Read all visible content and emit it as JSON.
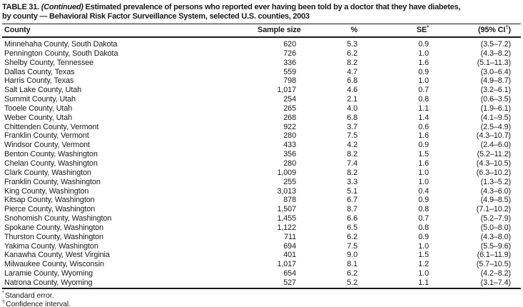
{
  "title": {
    "table_number": "TABLE 31.",
    "continued": "(Continued)",
    "line1_rest": "Estimated prevalence of persons who reported ever having been told by a doctor that they have diabetes,",
    "line2": "by county — Behavioral Risk Factor Surveillance System, selected U.S. counties, 2003"
  },
  "header": {
    "county": "County",
    "sample_size": "Sample size",
    "percent": "%",
    "se_base": "SE",
    "se_sup": "*",
    "ci_base": "(95% CI",
    "ci_sup": "†",
    "ci_close": ")"
  },
  "rows": [
    {
      "county": "Minnehaha County, South Dakota",
      "sample_size": "620",
      "percent": "5.3",
      "se": "0.9",
      "ci": "(3.5–7.2)"
    },
    {
      "county": "Pennington County, South Dakota",
      "sample_size": "726",
      "percent": "6.2",
      "se": "1.0",
      "ci": "(4.3–8.2)"
    },
    {
      "county": "Shelby County, Tennessee",
      "sample_size": "336",
      "percent": "8.2",
      "se": "1.6",
      "ci": "(5.1–11.3)"
    },
    {
      "county": "Dallas County, Texas",
      "sample_size": "559",
      "percent": "4.7",
      "se": "0.9",
      "ci": "(3.0–6.4)"
    },
    {
      "county": "Harris County, Texas",
      "sample_size": "798",
      "percent": "6.8",
      "se": "1.0",
      "ci": "(4.9–8.7)"
    },
    {
      "county": "Salt Lake County, Utah",
      "sample_size": "1,017",
      "percent": "4.6",
      "se": "0.7",
      "ci": "(3.2–6.1)"
    },
    {
      "county": "Summit County, Utah",
      "sample_size": "254",
      "percent": "2.1",
      "se": "0.8",
      "ci": "(0.6–3.5)"
    },
    {
      "county": "Tooele County, Utah",
      "sample_size": "265",
      "percent": "4.0",
      "se": "1.1",
      "ci": "(1.9–6.1)"
    },
    {
      "county": "Weber County, Utah",
      "sample_size": "268",
      "percent": "6.8",
      "se": "1.4",
      "ci": "(4.1–9.5)"
    },
    {
      "county": "Chittenden County, Vermont",
      "sample_size": "922",
      "percent": "3.7",
      "se": "0.6",
      "ci": "(2.5–4.9)"
    },
    {
      "county": "Franklin County, Vermont",
      "sample_size": "280",
      "percent": "7.5",
      "se": "1.6",
      "ci": "(4.3–10.7)"
    },
    {
      "county": "Windsor County, Vermont",
      "sample_size": "433",
      "percent": "4.2",
      "se": "0.9",
      "ci": "(2.4–6.0)"
    },
    {
      "county": "Benton County, Washington",
      "sample_size": "356",
      "percent": "8.2",
      "se": "1.5",
      "ci": "(5.2–11.2)"
    },
    {
      "county": "Chelan County, Washington",
      "sample_size": "280",
      "percent": "7.4",
      "se": "1.6",
      "ci": "(4.3–10.5)"
    },
    {
      "county": "Clark County, Washington",
      "sample_size": "1,009",
      "percent": "8.2",
      "se": "1.0",
      "ci": "(6.3–10.2)"
    },
    {
      "county": "Franklin County, Washington",
      "sample_size": "255",
      "percent": "3.3",
      "se": "1.0",
      "ci": "(1.3–5.2)"
    },
    {
      "county": "King County, Washington",
      "sample_size": "3,013",
      "percent": "5.1",
      "se": "0.4",
      "ci": "(4.3–6.0)"
    },
    {
      "county": "Kitsap County, Washington",
      "sample_size": "878",
      "percent": "6.7",
      "se": "0.9",
      "ci": "(4.9–8.5)"
    },
    {
      "county": "Pierce County, Washington",
      "sample_size": "1,507",
      "percent": "8.7",
      "se": "0.8",
      "ci": "(7.1–10.2)"
    },
    {
      "county": "Snohomish County, Washington",
      "sample_size": "1,455",
      "percent": "6.6",
      "se": "0.7",
      "ci": "(5.2–7.9)"
    },
    {
      "county": "Spokane County, Washington",
      "sample_size": "1,122",
      "percent": "6.5",
      "se": "0.8",
      "ci": "(5.0–8.0)"
    },
    {
      "county": "Thurston County, Washington",
      "sample_size": "711",
      "percent": "6.2",
      "se": "0.9",
      "ci": "(4.3–8.0)"
    },
    {
      "county": "Yakima County, Washington",
      "sample_size": "694",
      "percent": "7.5",
      "se": "1.0",
      "ci": "(5.5–9.6)"
    },
    {
      "county": "Kanawha County, West Virginia",
      "sample_size": "401",
      "percent": "9.0",
      "se": "1.5",
      "ci": "(6.1–11.9)"
    },
    {
      "county": "Milwaukee County, Wisconsin",
      "sample_size": "1,017",
      "percent": "8.1",
      "se": "1.2",
      "ci": "(5.7–10.5)"
    },
    {
      "county": "Laramie County, Wyoming",
      "sample_size": "654",
      "percent": "6.2",
      "se": "1.0",
      "ci": "(4.2–8.2)"
    },
    {
      "county": "Natrona County, Wyoming",
      "sample_size": "527",
      "percent": "5.2",
      "se": "1.1",
      "ci": "(3.1–7.4)"
    }
  ],
  "footnotes": [
    {
      "marker": "*",
      "text": "Standard error."
    },
    {
      "marker": "†",
      "text": "Confidence interval."
    }
  ],
  "colors": {
    "text": "#1a1a1a",
    "rule": "#1a1a1a",
    "background": "#ffffff"
  }
}
